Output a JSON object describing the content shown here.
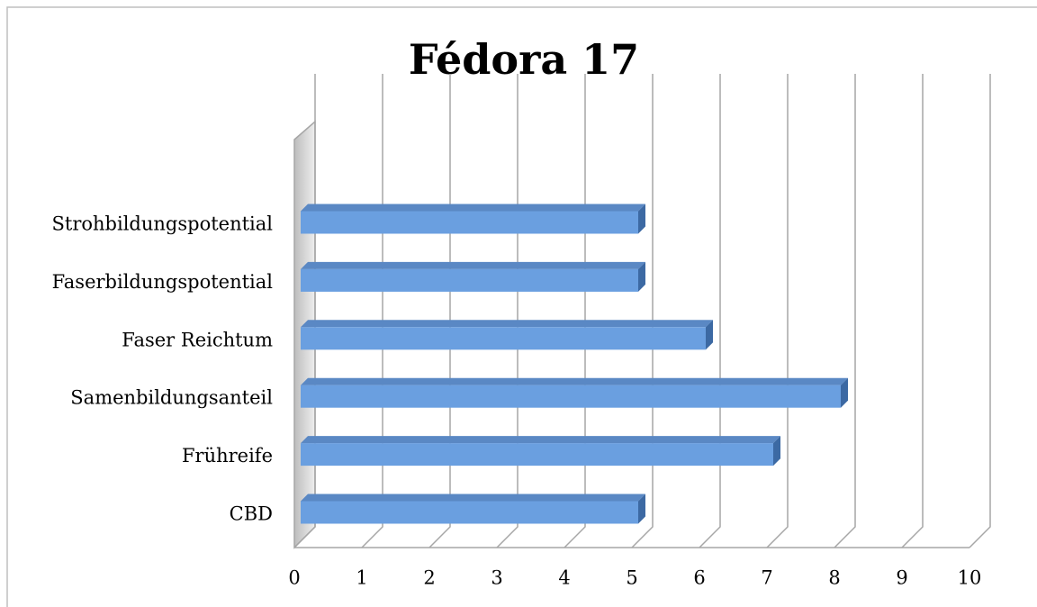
{
  "chart_data": {
    "type": "bar",
    "orientation": "horizontal",
    "title": "Fédora 17",
    "categories": [
      "CBD",
      "Frühreife",
      "Samenbildungsanteil",
      "Faser Reichtum",
      "Faserbildungspotential",
      "Strohbildungspotential"
    ],
    "values": [
      5,
      7,
      8,
      6,
      5,
      5
    ],
    "color": "#6a9fe0",
    "xlim": [
      0,
      10
    ],
    "xticks": [
      0,
      1,
      2,
      3,
      4,
      5,
      6,
      7,
      8,
      9,
      10
    ],
    "grid": true
  }
}
